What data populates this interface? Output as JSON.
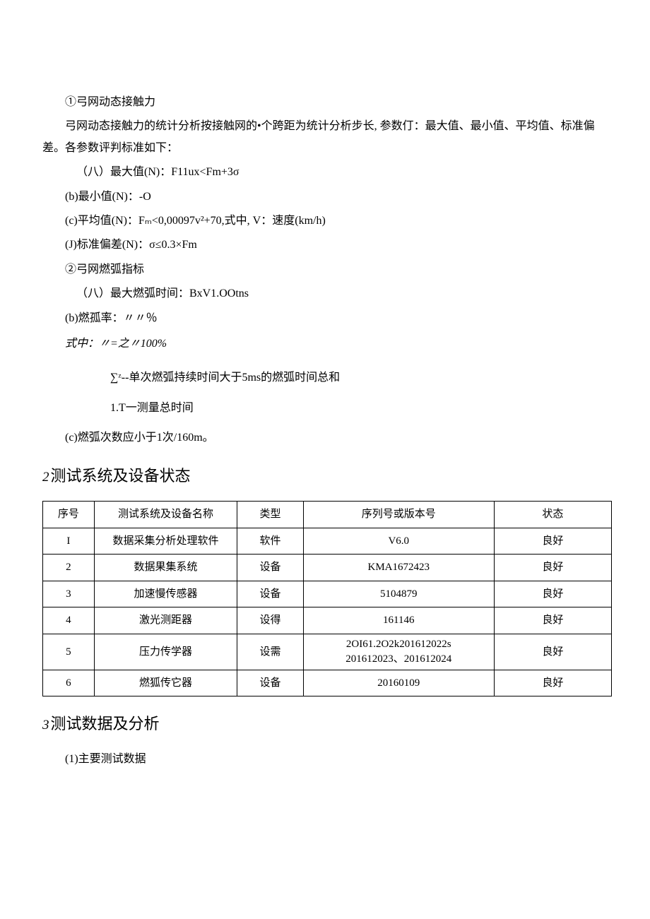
{
  "section1": {
    "item1_title": "①弓网动态接触力",
    "item1_desc": "弓网动态接触力的统计分析按接触网的•个跨距为统计分析步长, 参数仃：最大值、最小值、平均值、标准偏差。各参数评判标准如下：",
    "criteria_a": "（八）最大值(N)：F11ux<Fm+3σ",
    "criteria_b": "(b)最小值(N)：-O",
    "criteria_c": "(c)平均值(N)：Fₘ<0,00097v²+70,式中, V：速度(km/h)",
    "criteria_j": "(J)标准偏差(N)：σ≤0.3×Fm",
    "item2_title": "②弓网燃弧指标",
    "item2_a": "（八）最大燃弧时间：BxV1.OOtns",
    "item2_b": "(b)燃孤率：〃〃％",
    "formula": "式中：〃=之〃100%",
    "sigma_note": "∑ᶻ--单次燃弧持续时间大于5ms的燃弧时间总和",
    "lt_note": "1.T一测量总时间",
    "item2_c": "(c)燃弧次数应小于1次/160m。"
  },
  "section2": {
    "title_num": "2",
    "title_text": "测试系统及设备状态",
    "headers": {
      "idx": "序号",
      "name": "测试系统及设备名称",
      "type": "类型",
      "serial": "序列号或版本号",
      "status": "状态"
    },
    "rows": [
      {
        "idx": "I",
        "name": "数据采集分析处理软件",
        "type": "软件",
        "serial": "V6.0",
        "status": "良好"
      },
      {
        "idx": "2",
        "name": "数据果集系统",
        "type": "设备",
        "serial": "KMA1672423",
        "status": "良好"
      },
      {
        "idx": "3",
        "name": "加速慢传感器",
        "type": "设备",
        "serial": "5104879",
        "status": "良好"
      },
      {
        "idx": "4",
        "name": "激光测距器",
        "type": "设得",
        "serial": "161146",
        "status": "良好"
      },
      {
        "idx": "5",
        "name": "压力传学器",
        "type": "设需",
        "serial": "2OI61.2O2k201612022s 201612023、201612024",
        "status": "良好"
      },
      {
        "idx": "6",
        "name": "燃狐传它器",
        "type": "设备",
        "serial": "20160109",
        "status": "良好"
      }
    ]
  },
  "section3": {
    "title_num": "3",
    "title_text": "测试数据及分析",
    "sub1": "(1)主要测试数据"
  }
}
